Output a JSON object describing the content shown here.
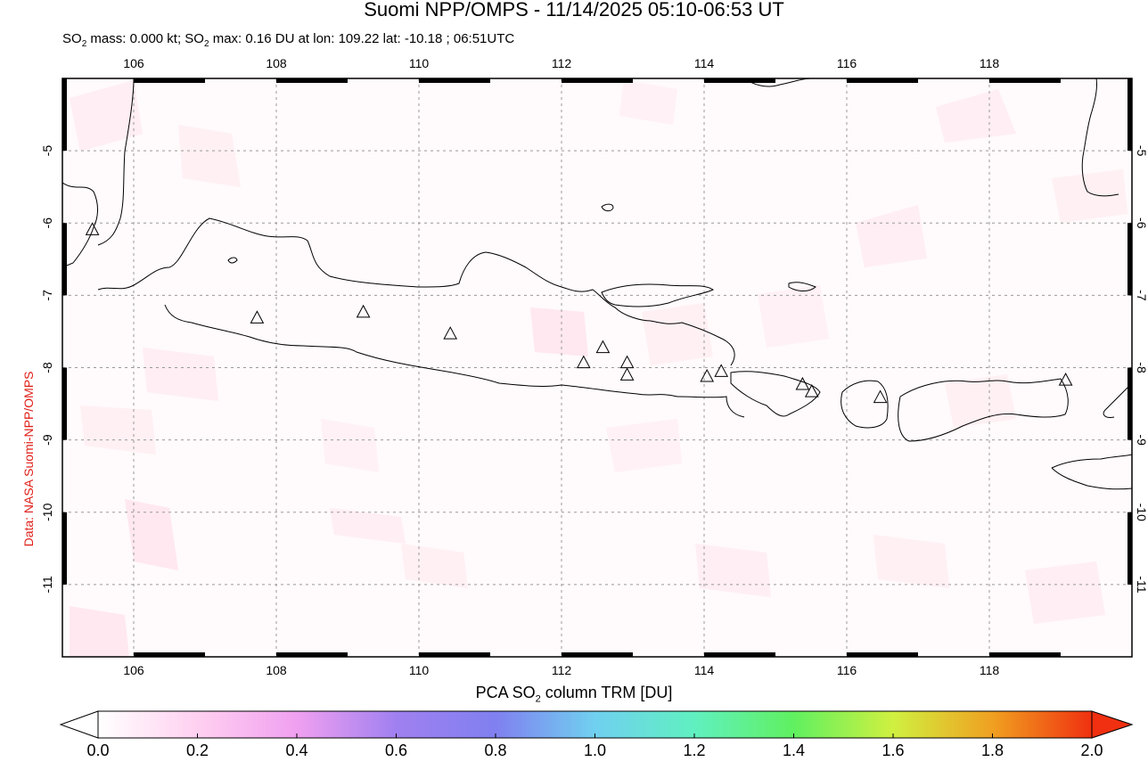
{
  "title": "Suomi NPP/OMPS - 11/14/2025 05:10-06:53 UT",
  "subtitle": {
    "mass_label": "SO",
    "mass_sub": "2",
    "mass_value": " mass: 0.000 kt; SO",
    "max_sub": "2",
    "max_value": " max: 0.16 DU at lon: 109.22 lat: -10.18 ; 06:51UTC"
  },
  "credit": "Data: NASA Suomi-NPP/OMPS",
  "map": {
    "lon_range": [
      105,
      120
    ],
    "lat_range": [
      -12,
      -4
    ],
    "lon_ticks": [
      "106",
      "108",
      "110",
      "112",
      "114",
      "116",
      "118"
    ],
    "lat_ticks": [
      "-5",
      "-6",
      "-7",
      "-8",
      "-9",
      "-10",
      "-11"
    ],
    "grid": "dotted",
    "volcanoes": [
      {
        "lon": 105.42,
        "lat": -6.1
      },
      {
        "lon": 107.73,
        "lat": -7.32
      },
      {
        "lon": 109.22,
        "lat": -7.24
      },
      {
        "lon": 110.44,
        "lat": -7.54
      },
      {
        "lon": 112.31,
        "lat": -7.94
      },
      {
        "lon": 112.58,
        "lat": -7.73
      },
      {
        "lon": 112.92,
        "lat": -7.94
      },
      {
        "lon": 112.92,
        "lat": -8.11
      },
      {
        "lon": 114.04,
        "lat": -8.13
      },
      {
        "lon": 114.24,
        "lat": -8.06
      },
      {
        "lon": 115.38,
        "lat": -8.24
      },
      {
        "lon": 115.51,
        "lat": -8.34
      },
      {
        "lon": 116.47,
        "lat": -8.42
      },
      {
        "lon": 119.07,
        "lat": -8.18
      }
    ]
  },
  "colorbar": {
    "title_main": "PCA SO",
    "title_sub": "2",
    "title_rest": " column TRM [DU]",
    "labels": [
      "0.0",
      "0.2",
      "0.4",
      "0.6",
      "0.8",
      "1.0",
      "1.2",
      "1.4",
      "1.6",
      "1.8",
      "2.0"
    ],
    "colors": [
      "#ffffff",
      "#ffd0f0",
      "#f0a0f0",
      "#a080f0",
      "#8080f0",
      "#70d0f0",
      "#60f0c0",
      "#60f060",
      "#d0f040",
      "#f0a020",
      "#f03010"
    ]
  }
}
